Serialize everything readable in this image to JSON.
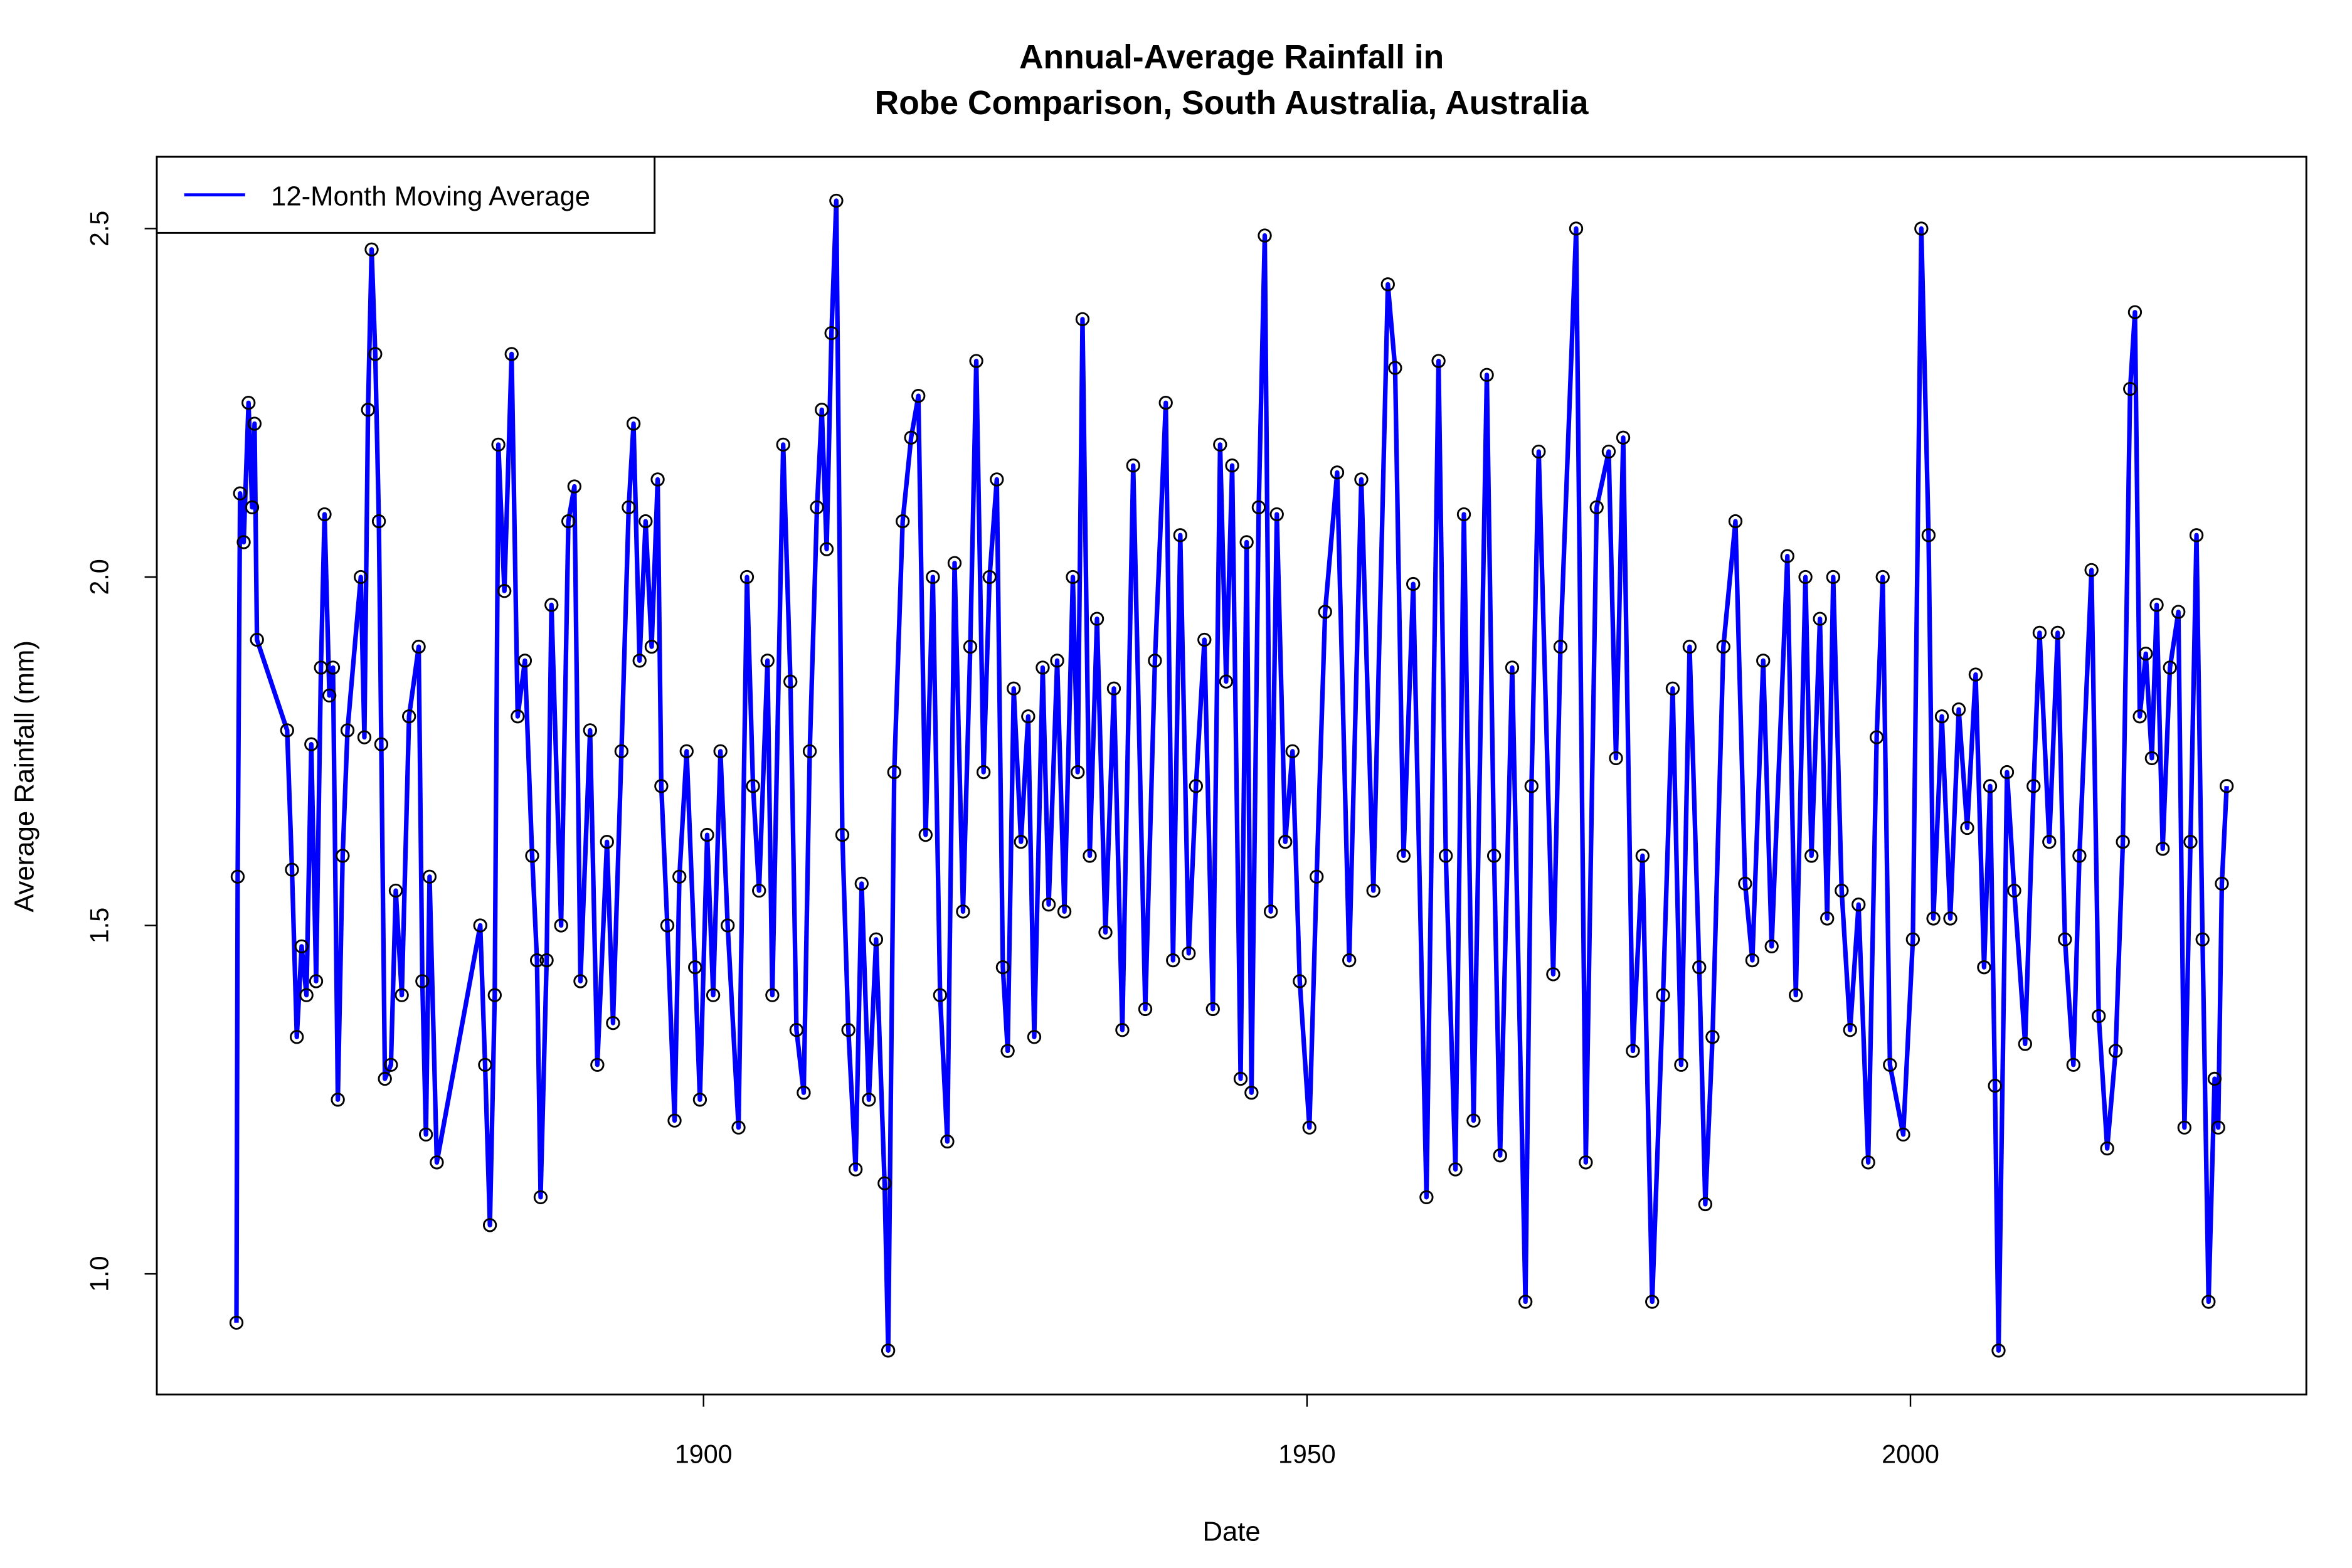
{
  "chart_data": {
    "type": "line",
    "title": [
      "Annual-Average Rainfall in",
      "Robe Comparison, South Australia, Australia"
    ],
    "xlabel": "Date",
    "ylabel": "Average Rainfall (mm)",
    "xlim": [
      1854.7,
      2032.8
    ],
    "ylim": [
      0.827,
      2.603
    ],
    "x_ticks": [
      1900,
      1950,
      2000
    ],
    "y_ticks": [
      1.0,
      1.5,
      2.0,
      2.5
    ],
    "y_tick_labels": [
      "1.0",
      "1.5",
      "2.0",
      "2.5"
    ],
    "grid": false,
    "legend": {
      "placement": "top-left",
      "entries": [
        "12-Month Moving Average"
      ]
    },
    "colors": {
      "line": "#0000ff",
      "points": "#000000"
    },
    "series": [
      {
        "name": "12-Month Moving Average",
        "points": [
          [
            1861.3,
            0.93
          ],
          [
            1861.4,
            1.57
          ],
          [
            1861.6,
            2.12
          ],
          [
            1861.9,
            2.05
          ],
          [
            1862.3,
            2.25
          ],
          [
            1862.6,
            2.1
          ],
          [
            1862.8,
            2.22
          ],
          [
            1863.0,
            1.91
          ],
          [
            1865.5,
            1.78
          ],
          [
            1865.9,
            1.58
          ],
          [
            1866.3,
            1.34
          ],
          [
            1866.7,
            1.47
          ],
          [
            1867.1,
            1.4
          ],
          [
            1867.5,
            1.76
          ],
          [
            1867.9,
            1.42
          ],
          [
            1868.3,
            1.87
          ],
          [
            1868.6,
            2.09
          ],
          [
            1869.0,
            1.83
          ],
          [
            1869.3,
            1.87
          ],
          [
            1869.7,
            1.25
          ],
          [
            1870.1,
            1.6
          ],
          [
            1870.5,
            1.78
          ],
          [
            1871.6,
            2.0
          ],
          [
            1871.9,
            1.77
          ],
          [
            1872.2,
            2.24
          ],
          [
            1872.5,
            2.47
          ],
          [
            1872.8,
            2.32
          ],
          [
            1873.1,
            2.08
          ],
          [
            1873.3,
            1.76
          ],
          [
            1873.6,
            1.28
          ],
          [
            1874.1,
            1.3
          ],
          [
            1874.5,
            1.55
          ],
          [
            1875.0,
            1.4
          ],
          [
            1875.6,
            1.8
          ],
          [
            1876.4,
            1.9
          ],
          [
            1876.7,
            1.42
          ],
          [
            1877.0,
            1.2
          ],
          [
            1877.3,
            1.57
          ],
          [
            1877.9,
            1.16
          ],
          [
            1881.5,
            1.5
          ],
          [
            1881.9,
            1.3
          ],
          [
            1882.3,
            1.07
          ],
          [
            1882.7,
            1.4
          ],
          [
            1883.0,
            2.19
          ],
          [
            1883.5,
            1.98
          ],
          [
            1884.1,
            2.32
          ],
          [
            1884.6,
            1.8
          ],
          [
            1885.2,
            1.88
          ],
          [
            1885.8,
            1.6
          ],
          [
            1886.2,
            1.45
          ],
          [
            1886.5,
            1.11
          ],
          [
            1887.0,
            1.45
          ],
          [
            1887.4,
            1.96
          ],
          [
            1888.2,
            1.5
          ],
          [
            1888.8,
            2.08
          ],
          [
            1889.3,
            2.13
          ],
          [
            1889.8,
            1.42
          ],
          [
            1890.6,
            1.78
          ],
          [
            1891.2,
            1.3
          ],
          [
            1892.0,
            1.62
          ],
          [
            1892.5,
            1.36
          ],
          [
            1893.2,
            1.75
          ],
          [
            1893.8,
            2.1
          ],
          [
            1894.2,
            2.22
          ],
          [
            1894.7,
            1.88
          ],
          [
            1895.2,
            2.08
          ],
          [
            1895.7,
            1.9
          ],
          [
            1896.2,
            2.14
          ],
          [
            1896.5,
            1.7
          ],
          [
            1897.0,
            1.5
          ],
          [
            1897.6,
            1.22
          ],
          [
            1898.0,
            1.57
          ],
          [
            1898.6,
            1.75
          ],
          [
            1899.3,
            1.44
          ],
          [
            1899.7,
            1.25
          ],
          [
            1900.3,
            1.63
          ],
          [
            1900.8,
            1.4
          ],
          [
            1901.4,
            1.75
          ],
          [
            1902.0,
            1.5
          ],
          [
            1902.9,
            1.21
          ],
          [
            1903.6,
            2.0
          ],
          [
            1904.1,
            1.7
          ],
          [
            1904.6,
            1.55
          ],
          [
            1905.3,
            1.88
          ],
          [
            1905.7,
            1.4
          ],
          [
            1906.6,
            2.19
          ],
          [
            1907.2,
            1.85
          ],
          [
            1907.7,
            1.35
          ],
          [
            1908.3,
            1.26
          ],
          [
            1908.8,
            1.75
          ],
          [
            1909.4,
            2.1
          ],
          [
            1909.8,
            2.24
          ],
          [
            1910.2,
            2.04
          ],
          [
            1910.6,
            2.35
          ],
          [
            1911.0,
            2.54
          ],
          [
            1911.5,
            1.63
          ],
          [
            1912.0,
            1.35
          ],
          [
            1912.6,
            1.15
          ],
          [
            1913.1,
            1.56
          ],
          [
            1913.7,
            1.25
          ],
          [
            1914.3,
            1.48
          ],
          [
            1915.0,
            1.13
          ],
          [
            1915.3,
            0.89
          ],
          [
            1915.8,
            1.72
          ],
          [
            1916.5,
            2.08
          ],
          [
            1917.2,
            2.2
          ],
          [
            1917.8,
            2.26
          ],
          [
            1918.4,
            1.63
          ],
          [
            1919.0,
            2.0
          ],
          [
            1919.6,
            1.4
          ],
          [
            1920.2,
            1.19
          ],
          [
            1920.8,
            2.02
          ],
          [
            1921.5,
            1.52
          ],
          [
            1922.1,
            1.9
          ],
          [
            1922.6,
            2.31
          ],
          [
            1923.2,
            1.72
          ],
          [
            1923.7,
            2.0
          ],
          [
            1924.3,
            2.14
          ],
          [
            1924.8,
            1.44
          ],
          [
            1925.2,
            1.32
          ],
          [
            1925.7,
            1.84
          ],
          [
            1926.3,
            1.62
          ],
          [
            1926.9,
            1.8
          ],
          [
            1927.4,
            1.34
          ],
          [
            1928.1,
            1.87
          ],
          [
            1928.6,
            1.53
          ],
          [
            1929.3,
            1.88
          ],
          [
            1929.9,
            1.52
          ],
          [
            1930.6,
            2.0
          ],
          [
            1931.0,
            1.72
          ],
          [
            1931.4,
            2.37
          ],
          [
            1932.0,
            1.6
          ],
          [
            1932.6,
            1.94
          ],
          [
            1933.3,
            1.49
          ],
          [
            1934.0,
            1.84
          ],
          [
            1934.7,
            1.35
          ],
          [
            1935.6,
            2.16
          ],
          [
            1936.6,
            1.38
          ],
          [
            1937.4,
            1.88
          ],
          [
            1938.3,
            2.25
          ],
          [
            1938.9,
            1.45
          ],
          [
            1939.5,
            2.06
          ],
          [
            1940.2,
            1.46
          ],
          [
            1940.8,
            1.7
          ],
          [
            1941.5,
            1.91
          ],
          [
            1942.2,
            1.38
          ],
          [
            1942.8,
            2.19
          ],
          [
            1943.3,
            1.85
          ],
          [
            1943.8,
            2.16
          ],
          [
            1944.5,
            1.28
          ],
          [
            1945.0,
            2.05
          ],
          [
            1945.4,
            1.26
          ],
          [
            1946.0,
            2.1
          ],
          [
            1946.5,
            2.49
          ],
          [
            1947.0,
            1.52
          ],
          [
            1947.5,
            2.09
          ],
          [
            1948.2,
            1.62
          ],
          [
            1948.8,
            1.75
          ],
          [
            1949.4,
            1.42
          ],
          [
            1950.2,
            1.21
          ],
          [
            1950.8,
            1.57
          ],
          [
            1951.5,
            1.95
          ],
          [
            1952.5,
            2.15
          ],
          [
            1953.5,
            1.45
          ],
          [
            1954.5,
            2.14
          ],
          [
            1955.5,
            1.55
          ],
          [
            1956.7,
            2.42
          ],
          [
            1957.3,
            2.3
          ],
          [
            1958.0,
            1.6
          ],
          [
            1958.8,
            1.99
          ],
          [
            1959.9,
            1.11
          ],
          [
            1960.9,
            2.31
          ],
          [
            1961.5,
            1.6
          ],
          [
            1962.3,
            1.15
          ],
          [
            1963.0,
            2.09
          ],
          [
            1963.8,
            1.22
          ],
          [
            1964.9,
            2.29
          ],
          [
            1965.5,
            1.6
          ],
          [
            1966.0,
            1.17
          ],
          [
            1967.0,
            1.87
          ],
          [
            1968.1,
            0.96
          ],
          [
            1968.6,
            1.7
          ],
          [
            1969.2,
            2.18
          ],
          [
            1970.4,
            1.43
          ],
          [
            1971.0,
            1.9
          ],
          [
            1972.3,
            2.5
          ],
          [
            1973.1,
            1.16
          ],
          [
            1974.0,
            2.1
          ],
          [
            1975.0,
            2.18
          ],
          [
            1975.6,
            1.74
          ],
          [
            1976.2,
            2.2
          ],
          [
            1977.0,
            1.32
          ],
          [
            1977.8,
            1.6
          ],
          [
            1978.6,
            0.96
          ],
          [
            1979.5,
            1.4
          ],
          [
            1980.3,
            1.84
          ],
          [
            1981.0,
            1.3
          ],
          [
            1981.7,
            1.9
          ],
          [
            1982.5,
            1.44
          ],
          [
            1983.0,
            1.1
          ],
          [
            1983.6,
            1.34
          ],
          [
            1984.5,
            1.9
          ],
          [
            1985.5,
            2.08
          ],
          [
            1986.3,
            1.56
          ],
          [
            1986.9,
            1.45
          ],
          [
            1987.8,
            1.88
          ],
          [
            1988.5,
            1.47
          ],
          [
            1989.8,
            2.03
          ],
          [
            1990.5,
            1.4
          ],
          [
            1991.3,
            2.0
          ],
          [
            1991.8,
            1.6
          ],
          [
            1992.5,
            1.94
          ],
          [
            1993.1,
            1.51
          ],
          [
            1993.6,
            2.0
          ],
          [
            1994.3,
            1.55
          ],
          [
            1995.0,
            1.35
          ],
          [
            1995.7,
            1.53
          ],
          [
            1996.5,
            1.16
          ],
          [
            1997.2,
            1.77
          ],
          [
            1997.7,
            2.0
          ],
          [
            1998.3,
            1.3
          ],
          [
            1999.4,
            1.2
          ],
          [
            2000.2,
            1.48
          ],
          [
            2000.9,
            2.5
          ],
          [
            2001.5,
            2.06
          ],
          [
            2001.9,
            1.51
          ],
          [
            2002.6,
            1.8
          ],
          [
            2003.3,
            1.51
          ],
          [
            2004.0,
            1.81
          ],
          [
            2004.7,
            1.64
          ],
          [
            2005.4,
            1.86
          ],
          [
            2006.1,
            1.44
          ],
          [
            2006.6,
            1.7
          ],
          [
            2007.0,
            1.27
          ],
          [
            2007.3,
            0.89
          ],
          [
            2008.0,
            1.72
          ],
          [
            2008.6,
            1.55
          ],
          [
            2009.5,
            1.33
          ],
          [
            2010.2,
            1.7
          ],
          [
            2010.7,
            1.92
          ],
          [
            2011.5,
            1.62
          ],
          [
            2012.2,
            1.92
          ],
          [
            2012.8,
            1.48
          ],
          [
            2013.5,
            1.3
          ],
          [
            2014.0,
            1.6
          ],
          [
            2015.0,
            2.01
          ],
          [
            2015.6,
            1.37
          ],
          [
            2016.3,
            1.18
          ],
          [
            2017.0,
            1.32
          ],
          [
            2017.6,
            1.62
          ],
          [
            2018.2,
            2.27
          ],
          [
            2018.6,
            2.38
          ],
          [
            2019.0,
            1.8
          ],
          [
            2019.5,
            1.89
          ],
          [
            2020.0,
            1.74
          ],
          [
            2020.4,
            1.96
          ],
          [
            2020.9,
            1.61
          ],
          [
            2021.5,
            1.87
          ],
          [
            2022.2,
            1.95
          ],
          [
            2022.7,
            1.21
          ],
          [
            2023.2,
            1.62
          ],
          [
            2023.7,
            2.06
          ],
          [
            2024.2,
            1.48
          ],
          [
            2024.7,
            0.96
          ],
          [
            2025.2,
            1.28
          ],
          [
            2025.5,
            1.21
          ],
          [
            2025.8,
            1.56
          ],
          [
            2026.2,
            1.7
          ]
        ]
      }
    ]
  }
}
